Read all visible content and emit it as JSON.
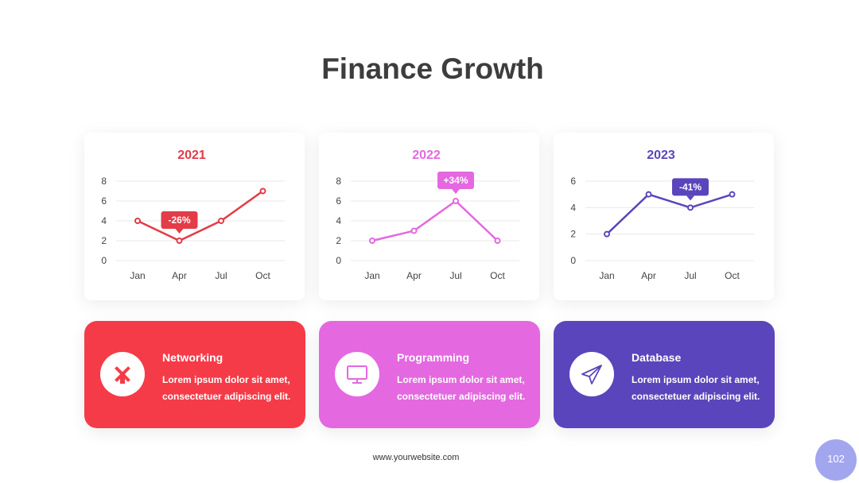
{
  "title": "Finance Growth",
  "website": "www.yourwebsite.com",
  "page_number": "102",
  "colors": {
    "red": "#f53b47",
    "pink": "#e468e0",
    "purple": "#5b45bc",
    "badge": "#a2a6ee"
  },
  "chart_data": [
    {
      "type": "line",
      "title": "2021",
      "categories": [
        "Jan",
        "Apr",
        "Jul",
        "Oct"
      ],
      "values": [
        4,
        2,
        4,
        7
      ],
      "ylim": [
        0,
        8
      ],
      "yticks": [
        "0",
        "2",
        "4",
        "6",
        "8"
      ],
      "color": "#e33b47",
      "grid": true,
      "annotation": {
        "text": "-26%",
        "category": "Apr"
      }
    },
    {
      "type": "line",
      "title": "2022",
      "categories": [
        "Jan",
        "Apr",
        "Jul",
        "Oct"
      ],
      "values": [
        2,
        3,
        6,
        2
      ],
      "ylim": [
        0,
        8
      ],
      "yticks": [
        "0",
        "2",
        "4",
        "6",
        "8"
      ],
      "color": "#e468e0",
      "grid": true,
      "annotation": {
        "text": "+34%",
        "category": "Jul"
      }
    },
    {
      "type": "line",
      "title": "2023",
      "categories": [
        "Jan",
        "Apr",
        "Jul",
        "Oct"
      ],
      "values": [
        2,
        5,
        4,
        5
      ],
      "ylim": [
        0,
        6
      ],
      "yticks": [
        "0",
        "2",
        "4",
        "6"
      ],
      "color": "#5b45bc",
      "grid": true,
      "annotation": {
        "text": "-41%",
        "category": "Jul"
      }
    }
  ],
  "cards": [
    {
      "title": "Networking",
      "text": "Lorem ipsum dolor sit amet, consectetuer adipiscing elit.",
      "icon": "windmill-icon",
      "color": "#f53b47"
    },
    {
      "title": "Programming",
      "text": "Lorem ipsum dolor sit amet, consectetuer adipiscing elit.",
      "icon": "monitor-icon",
      "color": "#e468e0"
    },
    {
      "title": "Database",
      "text": "Lorem ipsum dolor sit amet, consectetuer adipiscing elit.",
      "icon": "paper-plane-icon",
      "color": "#5b45bc"
    }
  ]
}
